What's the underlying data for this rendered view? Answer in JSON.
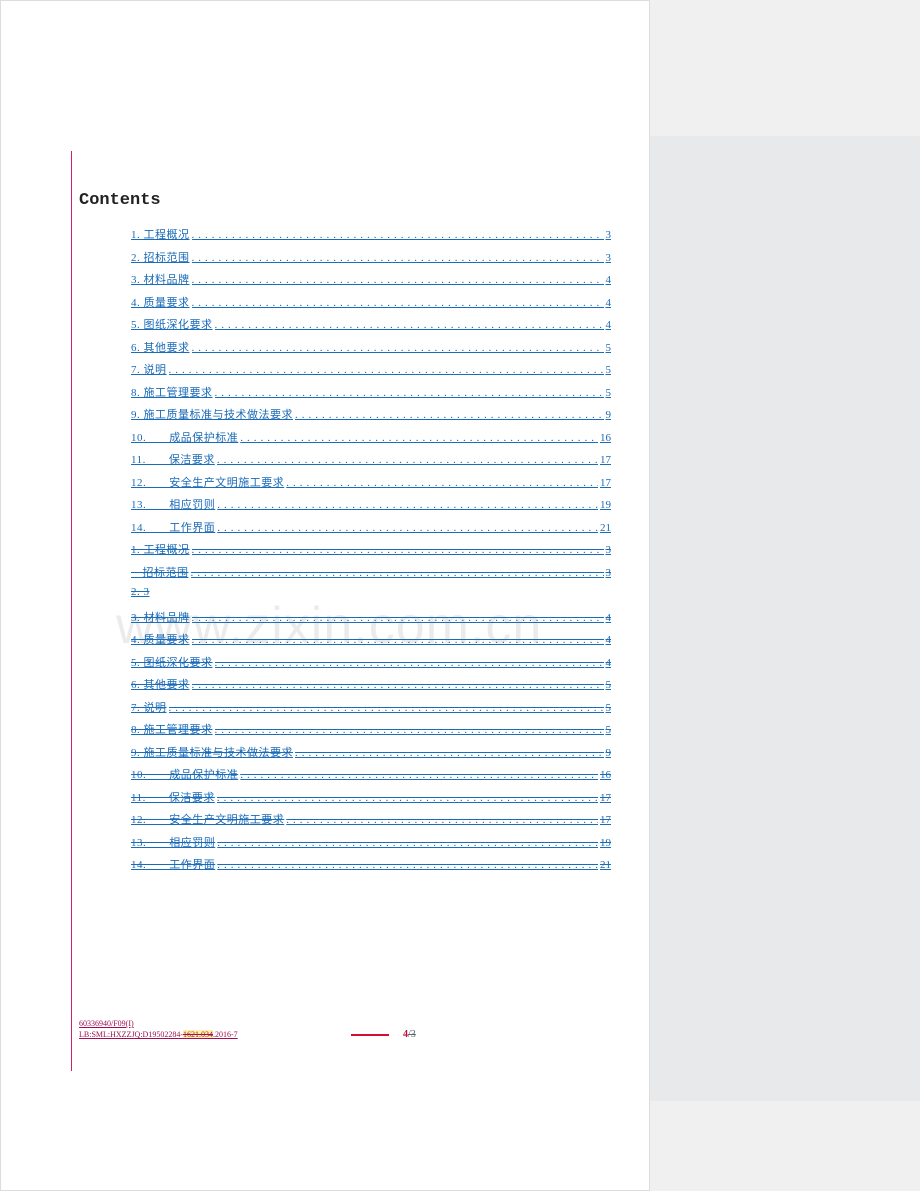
{
  "title": "Contents",
  "watermark": "www.zixin.com.cn",
  "toc_color": "#1a6bb8",
  "accent_color": "#cc2266",
  "background_color": "#ffffff",
  "side_panel_color": "#e8e9ea",
  "toc": [
    {
      "label": "1. 工程概况",
      "page": "3",
      "strike": false
    },
    {
      "label": "2. 招标范围",
      "page": "3",
      "strike": false
    },
    {
      "label": "3. 材料品牌",
      "page": "4",
      "strike": false
    },
    {
      "label": "4. 质量要求",
      "page": "4",
      "strike": false
    },
    {
      "label": "5. 图纸深化要求",
      "page": "4",
      "strike": false
    },
    {
      "label": "6. 其他要求",
      "page": "5",
      "strike": false
    },
    {
      "label": "7. 说明",
      "page": "5",
      "strike": false
    },
    {
      "label": "8. 施工管理要求",
      "page": "5",
      "strike": false
    },
    {
      "label": "9. 施工质量标准与技术做法要求",
      "page": "9",
      "strike": false
    },
    {
      "label": "10.　　成品保护标准",
      "page": "16",
      "strike": false
    },
    {
      "label": "11.　　保洁要求",
      "page": "17",
      "strike": false
    },
    {
      "label": "12.　　安全生产文明施工要求",
      "page": "17",
      "strike": false
    },
    {
      "label": "13.　　相应罚则",
      "page": "19",
      "strike": false
    },
    {
      "label": "14.　　工作界面",
      "page": "21",
      "strike": false
    },
    {
      "label": "1. 工程概况",
      "page": "3",
      "strike": true
    },
    {
      "label": "　招标范围",
      "page": "3",
      "strike": true
    },
    {
      "label": "2. 3",
      "page": "",
      "strike": true,
      "no_dots": true
    },
    {
      "label": "3. 材料品牌",
      "page": "4",
      "strike": true
    },
    {
      "label": "4. 质量要求",
      "page": "4",
      "strike": true
    },
    {
      "label": "5. 图纸深化要求",
      "page": "4",
      "strike": true
    },
    {
      "label": "6. 其他要求",
      "page": "5",
      "strike": true
    },
    {
      "label": "7. 说明",
      "page": "5",
      "strike": true
    },
    {
      "label": "8. 施工管理要求",
      "page": "5",
      "strike": true
    },
    {
      "label": "9. 施工质量标准与技术做法要求",
      "page": "9",
      "strike": true
    },
    {
      "label": "10.　　成品保护标准",
      "page": "16",
      "strike": true
    },
    {
      "label": "11.　　保洁要求",
      "page": "17",
      "strike": true
    },
    {
      "label": "12.　　安全生产文明施工要求",
      "page": "17",
      "strike": true
    },
    {
      "label": "13.　　相应罚则",
      "page": "19",
      "strike": true
    },
    {
      "label": "14.　　工作界面",
      "page": "21",
      "strike": true
    }
  ],
  "footer": {
    "line1": "60336940/F09(I)",
    "line2_a": "LB:SML:HXZZJQ:D19502284-",
    "line2_b": "1621.034",
    "line2_c": ".2016-7"
  },
  "pagenum": {
    "current": "4",
    "old": "/3"
  }
}
